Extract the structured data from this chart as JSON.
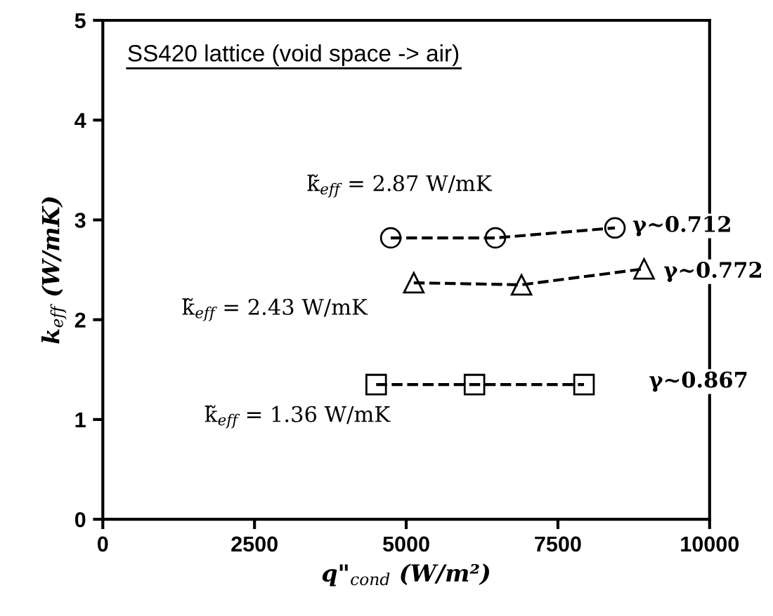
{
  "chart_data": {
    "type": "scatter",
    "title": "SS420 lattice (void space -> air)",
    "xlabel": "q\"$_{cond}$ (W/m²)",
    "ylabel": "k$_{eff}$ (W/mK)",
    "series": [
      {
        "color": "#000000",
        "marker": "circle",
        "x": [
          4745,
          6470,
          8440
        ],
        "values": [
          2.82,
          2.82,
          2.92
        ]
      },
      {
        "color": "#000000",
        "marker": "triangle",
        "x": [
          5125,
          6900,
          8920
        ],
        "values": [
          2.37,
          2.35,
          2.51
        ]
      },
      {
        "color": "#000000",
        "marker": "square",
        "x": [
          4505,
          6125,
          7930
        ],
        "values": [
          1.35,
          1.35,
          1.35
        ]
      }
    ],
    "line_style": "dashed",
    "annotations": [
      "k̃$_{eff}$ = 2.87 W/mK",
      "k̃$_{eff}$ = 2.43 W/mK",
      {
        "text": "k̃$_{eff}$ = 1.36 W/mK",
        "x": 4505,
        "y": 1.35
      },
      {
        "text": "γ~0.712",
        "x": 8440,
        "y": 2.92
      },
      {
        "text": "γ~0.772",
        "x": 8920,
        "y": 2.51
      },
      "γ~0.867"
    ],
    "xlim": [
      0,
      10000
    ],
    "xticks": [
      0,
      2500,
      5000,
      7500,
      10000
    ],
    "ylim": [
      0,
      5
    ],
    "yticks": [
      0,
      1,
      2,
      3,
      4,
      5
    ],
    "grid": false,
    "legend": false
  }
}
